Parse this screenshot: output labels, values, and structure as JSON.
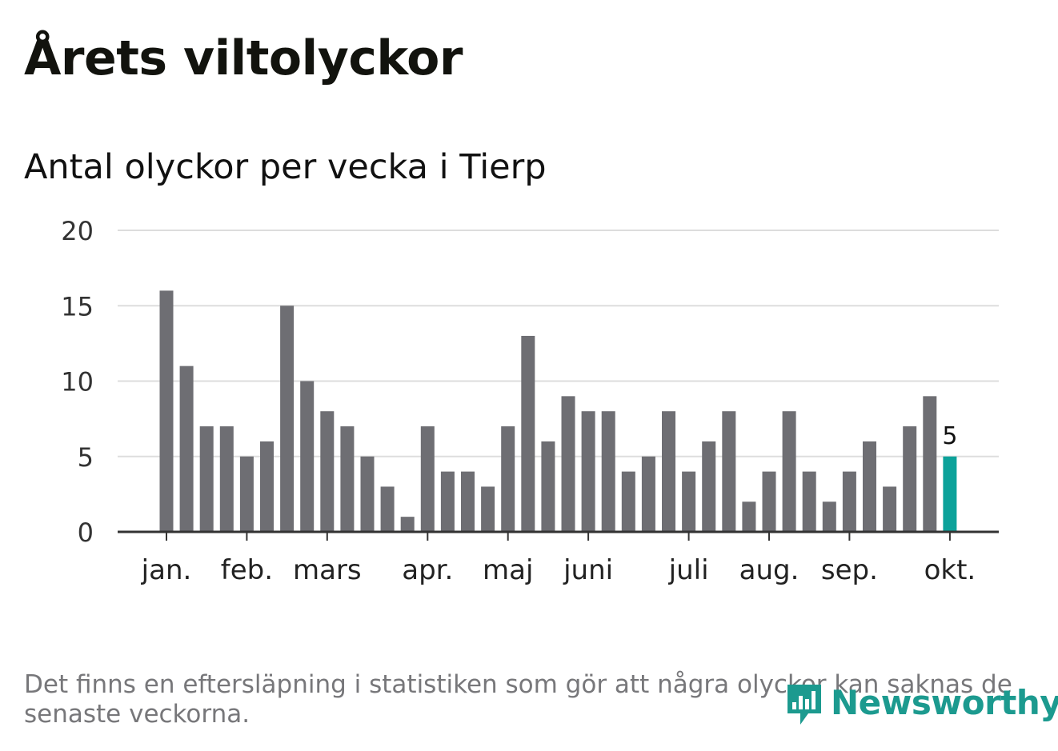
{
  "header": {
    "title": "Årets viltolyckor",
    "subtitle": "Antal olyckor per vecka i Tierp"
  },
  "chart_data": {
    "type": "bar",
    "title": "Årets viltolyckor",
    "subtitle": "Antal olyckor per vecka i Tierp",
    "xlabel": "",
    "ylabel": "",
    "ylim": [
      0,
      20
    ],
    "yticks": [
      0,
      5,
      10,
      15,
      20
    ],
    "values": [
      16,
      11,
      7,
      7,
      5,
      6,
      15,
      10,
      8,
      7,
      5,
      3,
      1,
      7,
      4,
      4,
      3,
      7,
      13,
      6,
      9,
      8,
      8,
      4,
      5,
      8,
      4,
      6,
      8,
      2,
      4,
      8,
      4,
      2,
      4,
      6,
      3,
      7,
      9,
      5
    ],
    "month_ticks": [
      {
        "label": "jan.",
        "bar_index": 0
      },
      {
        "label": "feb.",
        "bar_index": 4
      },
      {
        "label": "mars",
        "bar_index": 8
      },
      {
        "label": "apr.",
        "bar_index": 13
      },
      {
        "label": "maj",
        "bar_index": 17
      },
      {
        "label": "juni",
        "bar_index": 21
      },
      {
        "label": "juli",
        "bar_index": 26
      },
      {
        "label": "aug.",
        "bar_index": 30
      },
      {
        "label": "sep.",
        "bar_index": 34
      },
      {
        "label": "okt.",
        "bar_index": 39
      }
    ],
    "highlight": {
      "bar_index": 39,
      "label": "5"
    },
    "colors": {
      "bar": "#6e6e73",
      "highlight": "#0ca29a",
      "grid": "#dddddd",
      "axis": "#333333"
    }
  },
  "footer": {
    "note": "Det finns en eftersläpning i statistiken som gör att några olyckor kan saknas de senaste veckorna.",
    "logo_text": "Newsworthy"
  }
}
